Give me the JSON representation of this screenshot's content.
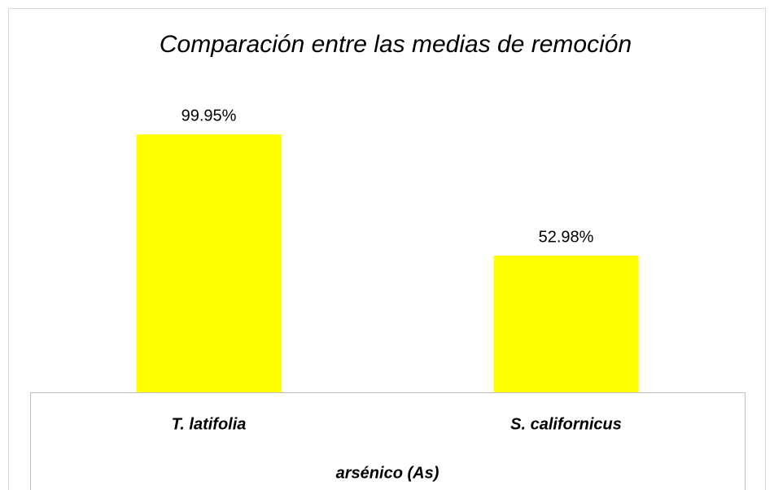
{
  "chart_data": {
    "type": "bar",
    "title": "Comparación entre las medias de remoción",
    "categories": [
      "T. latifolia",
      "S. californicus"
    ],
    "values": [
      99.95,
      52.98
    ],
    "value_labels": [
      "99.95%",
      "52.98%"
    ],
    "color": "#ffff00",
    "x_label": "arsénico (As)"
  }
}
